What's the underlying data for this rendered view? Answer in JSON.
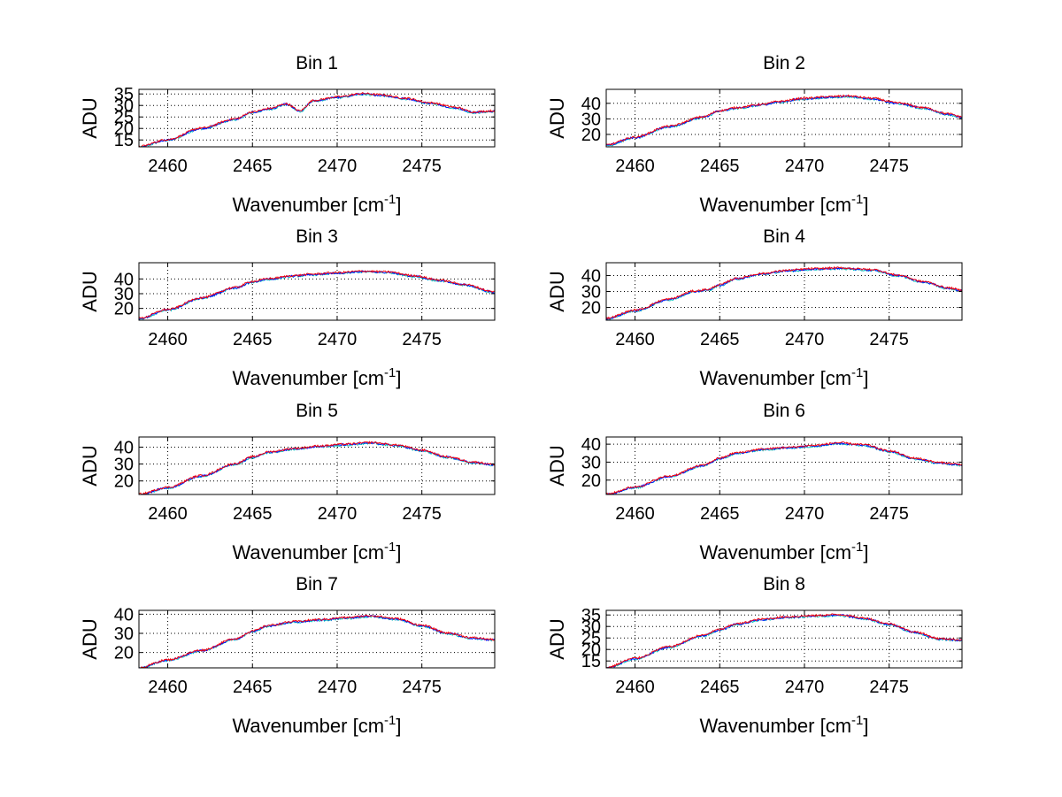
{
  "figure": {
    "background": "#ffffff"
  },
  "chart_data": [
    {
      "type": "line",
      "title": "Bin 1",
      "xlabel": "Wavenumber [cm",
      "xlabel_superscript": "-1",
      "xlabel_suffix": "]",
      "ylabel": "ADU",
      "xlim": [
        2458.3,
        2479.3
      ],
      "ylim": [
        12,
        37
      ],
      "xticks": [
        2460,
        2465,
        2470,
        2475
      ],
      "yticks": [
        15,
        20,
        25,
        30,
        35
      ],
      "grid": true,
      "series_colors": [
        "#00bfbf",
        "#0000ff",
        "#ff0000"
      ],
      "x_anchor": [
        2458.3,
        2460,
        2462,
        2464,
        2465,
        2466,
        2467,
        2467.8,
        2468.6,
        2470,
        2471.5,
        2472.5,
        2474,
        2475.5,
        2477,
        2478,
        2479.3
      ],
      "y_anchor": [
        12.0,
        15.0,
        20.0,
        24.0,
        27.0,
        28.5,
        30.5,
        27.5,
        32.0,
        33.5,
        35.0,
        34.5,
        33.0,
        31.0,
        29.0,
        27.0,
        27.5
      ]
    },
    {
      "type": "line",
      "title": "Bin 2",
      "xlabel": "Wavenumber [cm",
      "xlabel_superscript": "-1",
      "xlabel_suffix": "]",
      "ylabel": "ADU",
      "xlim": [
        2458.3,
        2479.3
      ],
      "ylim": [
        12,
        49
      ],
      "xticks": [
        2460,
        2465,
        2470,
        2475
      ],
      "yticks": [
        20,
        30,
        40
      ],
      "grid": true,
      "series_colors": [
        "#00bfbf",
        "#0000ff",
        "#ff0000"
      ],
      "x_anchor": [
        2458.3,
        2460,
        2462,
        2464,
        2465,
        2466,
        2467.5,
        2468.5,
        2470,
        2471.5,
        2472.5,
        2474,
        2475.5,
        2477,
        2478.5,
        2479.3
      ],
      "y_anchor": [
        13.0,
        18.0,
        25.0,
        31.0,
        35.0,
        37.0,
        39.0,
        41.0,
        43.0,
        44.0,
        44.5,
        43.0,
        40.0,
        37.0,
        33.0,
        31.0
      ]
    },
    {
      "type": "line",
      "title": "Bin 3",
      "xlabel": "Wavenumber [cm",
      "xlabel_superscript": "-1",
      "xlabel_suffix": "]",
      "ylabel": "ADU",
      "xlim": [
        2458.3,
        2479.3
      ],
      "ylim": [
        12,
        51
      ],
      "xticks": [
        2460,
        2465,
        2470,
        2475
      ],
      "yticks": [
        20,
        30,
        40
      ],
      "grid": true,
      "series_colors": [
        "#00bfbf",
        "#0000ff",
        "#ff0000"
      ],
      "x_anchor": [
        2458.3,
        2460,
        2462,
        2464,
        2465,
        2466,
        2467.5,
        2468.5,
        2470,
        2471.5,
        2473,
        2474.5,
        2476,
        2477.5,
        2479.3
      ],
      "y_anchor": [
        13.0,
        19.0,
        27.0,
        34.0,
        38.0,
        40.0,
        42.0,
        43.0,
        44.0,
        45.0,
        44.5,
        42.0,
        39.0,
        36.0,
        31.0
      ]
    },
    {
      "type": "line",
      "title": "Bin 4",
      "xlabel": "Wavenumber [cm",
      "xlabel_superscript": "-1",
      "xlabel_suffix": "]",
      "ylabel": "ADU",
      "xlim": [
        2458.3,
        2479.3
      ],
      "ylim": [
        12,
        48
      ],
      "xticks": [
        2460,
        2465,
        2470,
        2475
      ],
      "yticks": [
        20,
        30,
        40
      ],
      "grid": true,
      "series_colors": [
        "#00bfbf",
        "#0000ff",
        "#ff0000"
      ],
      "x_anchor": [
        2458.3,
        2460,
        2462,
        2463.5,
        2464.3,
        2465,
        2466,
        2467.5,
        2469,
        2470.5,
        2472,
        2474,
        2475.5,
        2477,
        2478.5,
        2479.3
      ],
      "y_anchor": [
        13.0,
        18.0,
        25.0,
        30.0,
        31.0,
        34.0,
        38.0,
        41.0,
        43.0,
        44.0,
        44.5,
        43.5,
        40.0,
        36.0,
        32.0,
        30.5
      ]
    },
    {
      "type": "line",
      "title": "Bin 5",
      "xlabel": "Wavenumber [cm",
      "xlabel_superscript": "-1",
      "xlabel_suffix": "]",
      "ylabel": "ADU",
      "xlim": [
        2458.3,
        2479.3
      ],
      "ylim": [
        12,
        46
      ],
      "xticks": [
        2460,
        2465,
        2470,
        2475
      ],
      "yticks": [
        20,
        30,
        40
      ],
      "grid": true,
      "series_colors": [
        "#00bfbf",
        "#0000ff",
        "#ff0000"
      ],
      "x_anchor": [
        2458.3,
        2460,
        2462,
        2464,
        2465,
        2466,
        2467.5,
        2469,
        2470.5,
        2472,
        2473.5,
        2475,
        2476.5,
        2478,
        2479.3
      ],
      "y_anchor": [
        12.0,
        16.0,
        23.0,
        30.0,
        34.0,
        37.0,
        39.0,
        40.5,
        41.5,
        42.5,
        41.0,
        38.0,
        34.0,
        31.0,
        29.5
      ]
    },
    {
      "type": "line",
      "title": "Bin 6",
      "xlabel": "Wavenumber [cm",
      "xlabel_superscript": "-1",
      "xlabel_suffix": "]",
      "ylabel": "ADU",
      "xlim": [
        2458.3,
        2479.3
      ],
      "ylim": [
        12,
        44
      ],
      "xticks": [
        2460,
        2465,
        2470,
        2475
      ],
      "yticks": [
        20,
        30,
        40
      ],
      "grid": true,
      "series_colors": [
        "#00bfbf",
        "#0000ff",
        "#ff0000"
      ],
      "x_anchor": [
        2458.3,
        2460,
        2462,
        2464,
        2465,
        2466,
        2467.5,
        2469,
        2470.5,
        2472,
        2473.5,
        2475,
        2476.5,
        2478,
        2479.3
      ],
      "y_anchor": [
        12.0,
        16.0,
        22.0,
        28.0,
        32.0,
        35.0,
        37.0,
        38.0,
        39.0,
        40.5,
        39.5,
        36.0,
        32.0,
        29.5,
        28.5
      ]
    },
    {
      "type": "line",
      "title": "Bin 7",
      "xlabel": "Wavenumber [cm",
      "xlabel_superscript": "-1",
      "xlabel_suffix": "]",
      "ylabel": "ADU",
      "xlim": [
        2458.3,
        2479.3
      ],
      "ylim": [
        12,
        42
      ],
      "xticks": [
        2460,
        2465,
        2470,
        2475
      ],
      "yticks": [
        20,
        30,
        40
      ],
      "grid": true,
      "series_colors": [
        "#00bfbf",
        "#0000ff",
        "#ff0000"
      ],
      "x_anchor": [
        2458.3,
        2460,
        2462,
        2464,
        2465,
        2466,
        2467.5,
        2469,
        2470.5,
        2472,
        2473.5,
        2475,
        2476.5,
        2478,
        2479.3
      ],
      "y_anchor": [
        12.0,
        16.0,
        21.0,
        27.0,
        31.0,
        34.0,
        36.0,
        37.0,
        38.0,
        39.0,
        37.5,
        34.0,
        30.0,
        27.5,
        26.5
      ]
    },
    {
      "type": "line",
      "title": "Bin 8",
      "xlabel": "Wavenumber [cm",
      "xlabel_superscript": "-1",
      "xlabel_suffix": "]",
      "ylabel": "ADU",
      "xlim": [
        2458.3,
        2479.3
      ],
      "ylim": [
        12,
        37
      ],
      "xticks": [
        2460,
        2465,
        2470,
        2475
      ],
      "yticks": [
        15,
        20,
        25,
        30,
        35
      ],
      "grid": true,
      "series_colors": [
        "#00bfbf",
        "#0000ff",
        "#ff0000"
      ],
      "x_anchor": [
        2458.3,
        2460,
        2462,
        2464,
        2465,
        2466,
        2467.5,
        2469,
        2470.5,
        2472,
        2473.5,
        2475,
        2476.5,
        2478,
        2479.3
      ],
      "y_anchor": [
        12.0,
        16.0,
        21.0,
        26.0,
        28.5,
        31.0,
        33.0,
        34.0,
        34.5,
        35.0,
        33.5,
        31.0,
        27.5,
        24.5,
        24.0
      ]
    }
  ]
}
